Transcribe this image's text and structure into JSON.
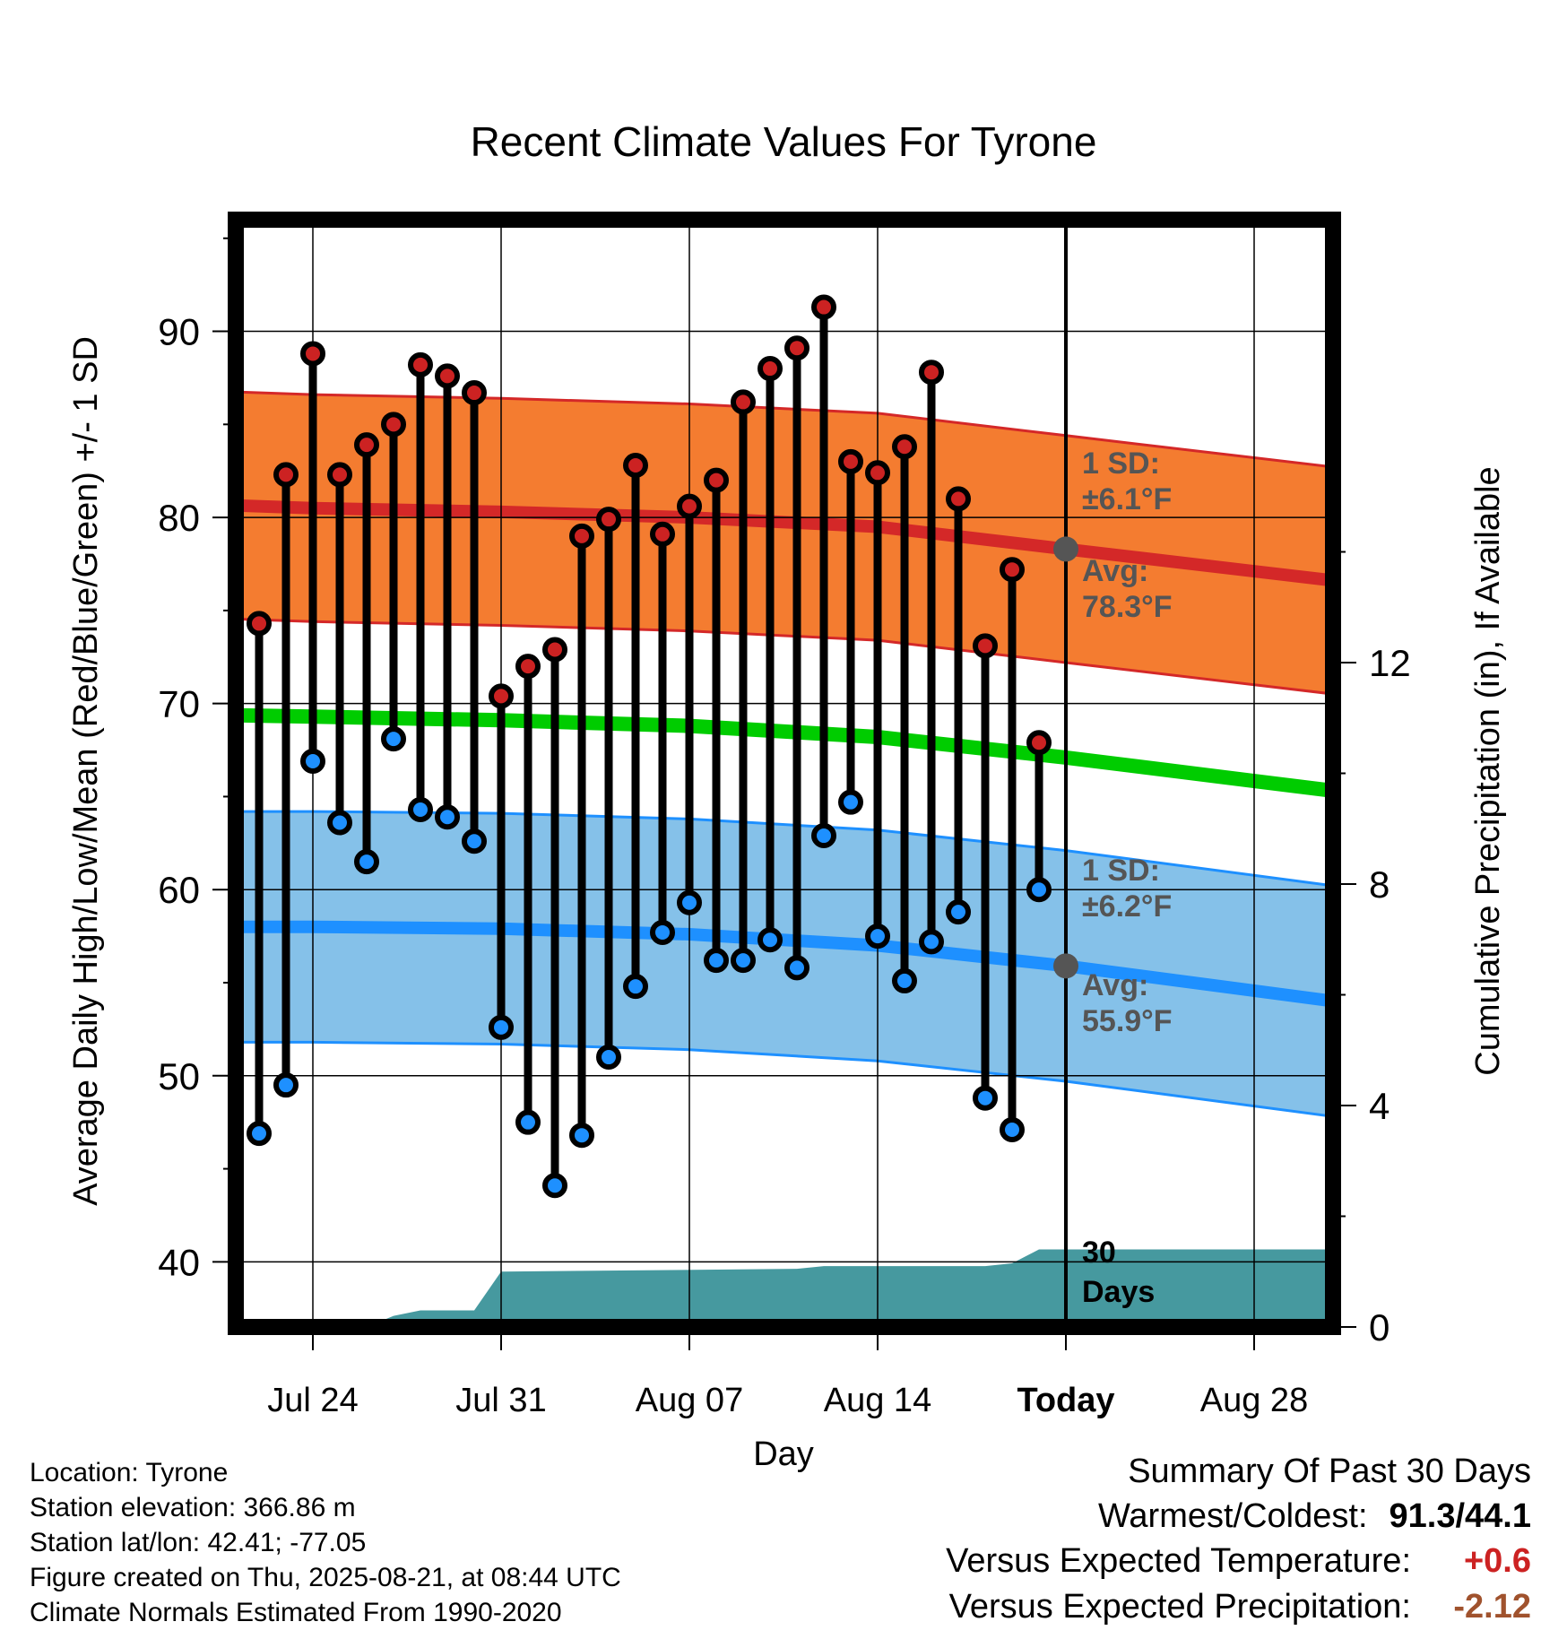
{
  "chart_data": {
    "type": "line",
    "title": "Recent Climate Values For Tyrone",
    "xlabel": "Day",
    "ylabel": "Average Daily High/Low/Mean (Red/Blue/Green) +/- 1 SD",
    "y2label": "Cumulative Precipitation (in), If Available",
    "x_ticks": [
      "Jul 24",
      "Jul 31",
      "Aug 07",
      "Aug 14",
      "Today",
      "Aug 28"
    ],
    "y_ticks": [
      40,
      50,
      60,
      70,
      80,
      90
    ],
    "y2_ticks": [
      0,
      4,
      8,
      12
    ],
    "ylim": [
      36.5,
      96
    ],
    "y2lim": [
      0,
      20
    ],
    "x_days": [
      "Jul 22",
      "Jul 23",
      "Jul 24",
      "Jul 25",
      "Jul 26",
      "Jul 27",
      "Jul 28",
      "Jul 29",
      "Jul 30",
      "Jul 31",
      "Aug 01",
      "Aug 02",
      "Aug 03",
      "Aug 04",
      "Aug 05",
      "Aug 06",
      "Aug 07",
      "Aug 08",
      "Aug 09",
      "Aug 10",
      "Aug 11",
      "Aug 12",
      "Aug 13",
      "Aug 14",
      "Aug 15",
      "Aug 16",
      "Aug 17",
      "Aug 18",
      "Aug 19",
      "Aug 20"
    ],
    "series": [
      {
        "name": "High",
        "color": "#cc2222",
        "values": [
          74.3,
          82.3,
          88.8,
          82.3,
          83.9,
          85.0,
          88.2,
          87.6,
          86.7,
          70.4,
          72.0,
          72.9,
          79.0,
          79.9,
          82.8,
          79.1,
          80.6,
          82.0,
          86.2,
          88.0,
          89.1,
          91.3,
          83.0,
          82.4,
          83.8,
          87.8,
          81.0,
          73.1,
          77.2,
          67.9
        ]
      },
      {
        "name": "Low",
        "color": "#1e90ff",
        "values": [
          46.9,
          49.5,
          66.9,
          63.6,
          61.5,
          68.1,
          64.3,
          63.9,
          62.6,
          52.6,
          47.5,
          44.1,
          46.8,
          51.0,
          54.8,
          57.7,
          59.3,
          56.2,
          56.2,
          57.3,
          55.8,
          62.9,
          64.7,
          57.5,
          55.1,
          57.2,
          58.8,
          48.8,
          47.1,
          60.0
        ]
      }
    ],
    "normals": {
      "high_avg": [
        80.7,
        80.5,
        80.3,
        80.0,
        79.5,
        78.3,
        76.6
      ],
      "high_sd": 6.1,
      "low_avg": [
        58.0,
        58.0,
        57.9,
        57.6,
        57.0,
        55.9,
        54.0
      ],
      "low_sd": 6.2,
      "mean_avg": [
        69.4,
        69.3,
        69.1,
        68.8,
        68.2,
        67.1,
        65.3
      ],
      "normals_x": [
        "Jul 20",
        "Jul 24",
        "Jul 31",
        "Aug 07",
        "Aug 14",
        "Today",
        "Aug 31"
      ]
    },
    "precipitation": {
      "x": [
        "Jul 24",
        "Jul 25",
        "Jul 26",
        "Jul 27",
        "Jul 28",
        "Jul 29",
        "Jul 30",
        "Jul 31",
        "Aug 11",
        "Aug 12",
        "Aug 18",
        "Aug 19",
        "Aug 20",
        "Aug 31"
      ],
      "values": [
        0.0,
        0.0,
        0.0,
        0.2,
        0.3,
        0.3,
        0.3,
        1.0,
        1.05,
        1.1,
        1.1,
        1.15,
        1.4,
        1.4
      ]
    },
    "annotations": {
      "high_sd_label": "1 SD:",
      "high_sd_value": "±6.1°F",
      "high_avg_label": "Avg:",
      "high_avg_value": "78.3°F",
      "low_sd_label": "1 SD:",
      "low_sd_value": "±6.2°F",
      "low_avg_label": "Avg:",
      "low_avg_value": "55.9°F",
      "precip_label_1": "30",
      "precip_label_2": "Days"
    },
    "colors": {
      "high_band": "#f47c30",
      "high_line": "#d42828",
      "low_band": "#85c1e9",
      "low_line": "#1e90ff",
      "mean_line": "#00cc00",
      "precip": "#46999f",
      "today_dot": "#555555"
    },
    "grid": true
  },
  "info": {
    "location": "Location: Tyrone",
    "elevation": "Station elevation: 366.86 m",
    "latlon": "Station lat/lon: 42.41; -77.05",
    "created": "Figure created on Thu, 2025-08-21, at 08:44 UTC",
    "normals": "Climate Normals Estimated From 1990-2020"
  },
  "summary": {
    "title": "Summary Of Past 30 Days",
    "warm_cold_label": "Warmest/Coldest:",
    "warm_cold_value": "91.3/44.1",
    "temp_label": "Versus Expected Temperature:",
    "temp_value": "+0.6",
    "temp_color": "#cc2222",
    "precip_label": "Versus Expected Precipitation:",
    "precip_value": "-2.12",
    "precip_color": "#a0522d"
  }
}
